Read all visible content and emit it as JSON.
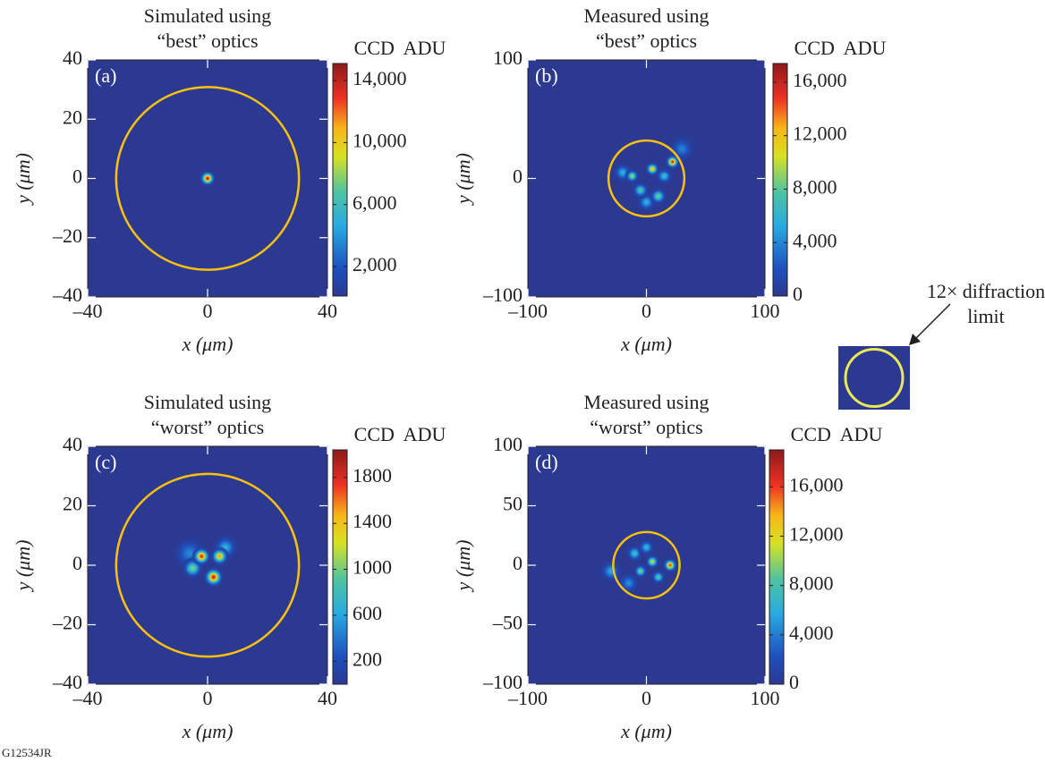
{
  "chart_data": [
    {
      "type": "heatmap",
      "panel": "(a)",
      "title": [
        "Simulated using",
        "“best” optics"
      ],
      "xlabel": "x (μm)",
      "ylabel": "y (μm)",
      "colorbar_label": "CCD  ADU",
      "xlim": [
        -40,
        40
      ],
      "ylim": [
        -40,
        40
      ],
      "xticks": [
        {
          "value": -40,
          "label": "–40"
        },
        0,
        40
      ],
      "yticks": [
        {
          "value": -40,
          "label": "–40"
        },
        {
          "value": -20,
          "label": "–20"
        },
        0,
        20,
        40
      ],
      "clim": [
        100,
        15100
      ],
      "cticks": [
        {
          "value": 2000,
          "label": "2,000"
        },
        {
          "value": 6000,
          "label": "6,000"
        },
        {
          "value": 10000,
          "label": "10,000"
        },
        {
          "value": 14000,
          "label": "14,000"
        }
      ],
      "circle_radius": 30.5,
      "circle_color": "#fdc010",
      "spots": [
        {
          "x": 0,
          "y": 0,
          "value": 14800,
          "width": 1.1
        }
      ]
    },
    {
      "type": "heatmap",
      "panel": "(b)",
      "title": [
        "Measured using",
        "“best” optics"
      ],
      "xlabel": "x (μm)",
      "ylabel": "y (μm)",
      "colorbar_label": "CCD  ADU",
      "xlim": [
        -100,
        100
      ],
      "ylim": [
        -100,
        100
      ],
      "xticks": [
        {
          "value": -100,
          "label": "–100"
        },
        0,
        100
      ],
      "yticks": [
        {
          "value": -100,
          "label": "–100"
        },
        0,
        100
      ],
      "clim": [
        0,
        17400
      ],
      "cticks": [
        0,
        {
          "value": 4000,
          "label": "4,000"
        },
        {
          "value": 8000,
          "label": "8,000"
        },
        {
          "value": 12000,
          "label": "12,000"
        },
        {
          "value": 16000,
          "label": "16,000"
        }
      ],
      "circle_radius": 32,
      "circle_color": "#fdc010",
      "spots": [
        {
          "x": 30,
          "y": 25,
          "value": 4000,
          "width": 5
        },
        {
          "x": -20,
          "y": 5,
          "value": 6000,
          "width": 3.5
        },
        {
          "x": 0,
          "y": -20,
          "value": 6000,
          "width": 3.5
        },
        {
          "x": -5,
          "y": -10,
          "value": 8000,
          "width": 3
        },
        {
          "x": 15,
          "y": 2,
          "value": 7000,
          "width": 3
        },
        {
          "x": 10,
          "y": -15,
          "value": 9000,
          "width": 3
        },
        {
          "x": -12,
          "y": 2,
          "value": 10000,
          "width": 2.5
        },
        {
          "x": 5,
          "y": 8,
          "value": 13000,
          "width": 2.5
        },
        {
          "x": 22,
          "y": 14,
          "value": 16500,
          "width": 2.5
        }
      ]
    },
    {
      "type": "heatmap",
      "panel": "(c)",
      "title": [
        "Simulated using",
        "“worst” optics"
      ],
      "xlabel": "x (μm)",
      "ylabel": "y (μm)",
      "colorbar_label": "CCD  ADU",
      "xlim": [
        -40,
        40
      ],
      "ylim": [
        -40,
        40
      ],
      "xticks": [
        {
          "value": -40,
          "label": "–40"
        },
        0,
        40
      ],
      "yticks": [
        {
          "value": -40,
          "label": "–40"
        },
        {
          "value": -20,
          "label": "–20"
        },
        0,
        20,
        40
      ],
      "clim": [
        0,
        2040
      ],
      "cticks": [
        200,
        600,
        1000,
        1400,
        1800
      ],
      "circle_radius": 30.5,
      "circle_color": "#fdc010",
      "spots": [
        {
          "x": -6,
          "y": 4,
          "value": 500,
          "width": 2.5
        },
        {
          "x": 6,
          "y": 6,
          "value": 700,
          "width": 1.8
        },
        {
          "x": -5,
          "y": -1,
          "value": 1100,
          "width": 1.5
        },
        {
          "x": 4,
          "y": 3,
          "value": 1600,
          "width": 1.3
        },
        {
          "x": -2,
          "y": 3,
          "value": 1900,
          "width": 1.3
        },
        {
          "x": 2,
          "y": -4,
          "value": 1950,
          "width": 1.4
        }
      ]
    },
    {
      "type": "heatmap",
      "panel": "(d)",
      "title": [
        "Measured  using",
        "“worst” optics"
      ],
      "xlabel": "x (μm)",
      "ylabel": "y (μm)",
      "colorbar_label": "CCD  ADU",
      "xlim": [
        -100,
        100
      ],
      "ylim": [
        -100,
        100
      ],
      "xticks": [
        {
          "value": -100,
          "label": "–100"
        },
        0,
        100
      ],
      "yticks": [
        {
          "value": -100,
          "label": "–100"
        },
        {
          "value": -50,
          "label": "–50"
        },
        0,
        50,
        100
      ],
      "clim": [
        0,
        19000
      ],
      "cticks": [
        0,
        {
          "value": 4000,
          "label": "4,000"
        },
        {
          "value": 8000,
          "label": "8,000"
        },
        {
          "value": 12000,
          "label": "12,000"
        },
        {
          "value": 16000,
          "label": "16,000"
        }
      ],
      "circle_radius": 28,
      "circle_color": "#fdc010",
      "spots": [
        {
          "x": -30,
          "y": -5,
          "value": 6000,
          "width": 4
        },
        {
          "x": -15,
          "y": -15,
          "value": 5000,
          "width": 4
        },
        {
          "x": -10,
          "y": 10,
          "value": 8000,
          "width": 3
        },
        {
          "x": 0,
          "y": 15,
          "value": 7000,
          "width": 3
        },
        {
          "x": -5,
          "y": -5,
          "value": 10000,
          "width": 2.5
        },
        {
          "x": 10,
          "y": -10,
          "value": 9000,
          "width": 2.5
        },
        {
          "x": 5,
          "y": 3,
          "value": 12000,
          "width": 2.5
        },
        {
          "x": 20,
          "y": 0,
          "value": 17000,
          "width": 2.5
        }
      ]
    }
  ],
  "inset_label": [
    "12× diffraction",
    "limit"
  ],
  "figure_id": "G12534JR"
}
